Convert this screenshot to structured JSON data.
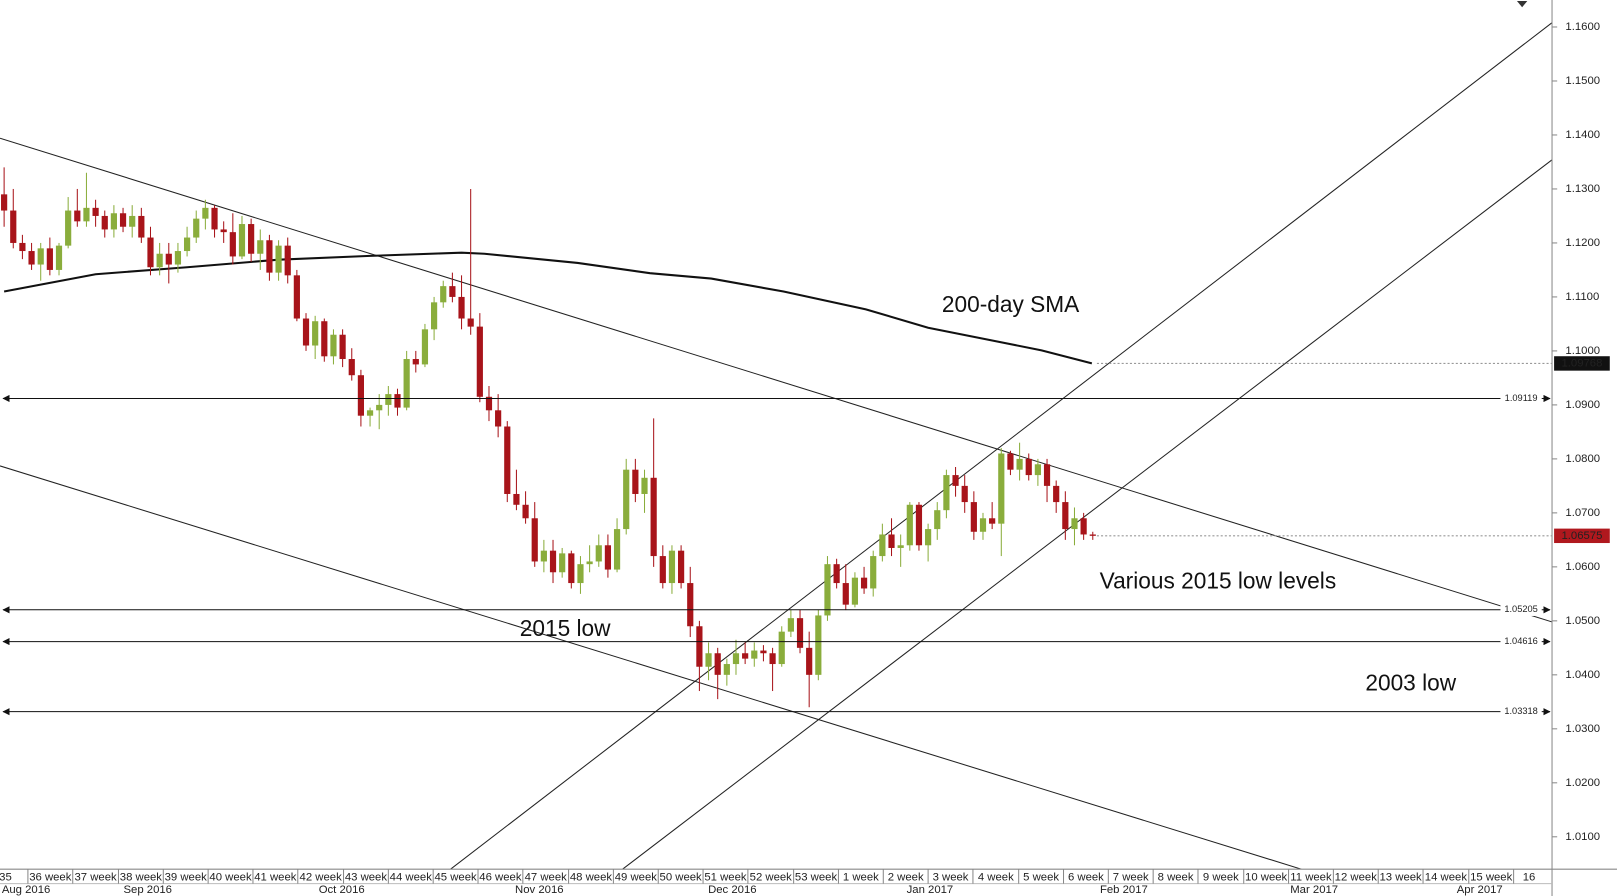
{
  "chart_data": {
    "type": "candlestick",
    "up_color": "#8aad3c",
    "down_color": "#a8141a",
    "xlim": [
      -0.45,
      169.2
    ],
    "ylim": [
      1.004,
      1.165
    ],
    "grid": false,
    "open": [
      1.129,
      1.126,
      1.12,
      1.1185,
      1.116,
      1.119,
      1.115,
      1.1195,
      1.126,
      1.124,
      1.1265,
      1.125,
      1.1225,
      1.1255,
      1.123,
      1.125,
      1.121,
      1.1155,
      1.118,
      1.116,
      1.1185,
      1.121,
      1.1245,
      1.1265,
      1.1225,
      1.122,
      1.1175,
      1.1235,
      1.118,
      1.1205,
      1.1145,
      1.1195,
      1.114,
      1.106,
      1.101,
      1.1055,
      1.099,
      1.103,
      1.0985,
      1.0955,
      1.088,
      1.089,
      1.09,
      1.092,
      1.0895,
      1.0985,
      1.0975,
      1.104,
      1.109,
      1.112,
      1.11,
      1.106,
      1.1045,
      1.0915,
      1.089,
      1.086,
      1.0735,
      1.0715,
      1.069,
      1.061,
      1.063,
      1.059,
      1.0625,
      1.057,
      1.0605,
      1.061,
      1.064,
      1.0595,
      1.067,
      1.078,
      1.0735,
      1.0765,
      1.062,
      1.057,
      1.063,
      1.057,
      1.049,
      1.0415,
      1.044,
      1.04,
      1.042,
      1.044,
      1.043,
      1.0445,
      1.044,
      1.042,
      1.048,
      1.0505,
      1.045,
      1.04,
      1.051,
      1.0605,
      1.057,
      1.053,
      1.058,
      1.056,
      1.062,
      1.066,
      1.0635,
      1.064,
      1.0715,
      1.064,
      1.067,
      1.0705,
      1.077,
      1.075,
      1.072,
      1.0665,
      1.069,
      1.068,
      1.081,
      1.078,
      1.08,
      1.077,
      1.079,
      1.075,
      1.072,
      1.067,
      1.069,
      1.066
    ],
    "high": [
      1.134,
      1.13,
      1.1215,
      1.12,
      1.12,
      1.121,
      1.12,
      1.1285,
      1.13,
      1.133,
      1.128,
      1.126,
      1.127,
      1.1265,
      1.127,
      1.1265,
      1.123,
      1.12,
      1.12,
      1.12,
      1.123,
      1.126,
      1.128,
      1.127,
      1.124,
      1.1255,
      1.125,
      1.1245,
      1.1225,
      1.1215,
      1.1205,
      1.121,
      1.115,
      1.107,
      1.1065,
      1.106,
      1.104,
      1.104,
      1.1005,
      1.0965,
      1.0895,
      1.092,
      1.0935,
      1.093,
      1.1,
      1.1,
      1.105,
      1.11,
      1.113,
      1.1145,
      1.114,
      1.13,
      1.107,
      1.0935,
      1.092,
      1.087,
      1.078,
      1.074,
      1.072,
      1.065,
      1.065,
      1.0635,
      1.063,
      1.062,
      1.064,
      1.066,
      1.066,
      1.069,
      1.08,
      1.08,
      1.078,
      1.0875,
      1.064,
      1.064,
      1.064,
      1.06,
      1.05,
      1.046,
      1.045,
      1.043,
      1.0465,
      1.046,
      1.046,
      1.0455,
      1.045,
      1.049,
      1.052,
      1.052,
      1.048,
      1.052,
      1.062,
      1.0615,
      1.0605,
      1.059,
      1.06,
      1.063,
      1.068,
      1.069,
      1.066,
      1.072,
      1.072,
      1.068,
      1.072,
      1.078,
      1.0785,
      1.077,
      1.074,
      1.07,
      1.072,
      1.082,
      1.0815,
      1.083,
      1.081,
      1.08,
      1.08,
      1.076,
      1.074,
      1.071,
      1.07,
      1.0665
    ],
    "low": [
      1.123,
      1.119,
      1.117,
      1.115,
      1.113,
      1.114,
      1.114,
      1.119,
      1.123,
      1.123,
      1.123,
      1.121,
      1.121,
      1.122,
      1.121,
      1.12,
      1.114,
      1.114,
      1.1125,
      1.1145,
      1.1175,
      1.12,
      1.1225,
      1.121,
      1.12,
      1.116,
      1.117,
      1.1165,
      1.115,
      1.113,
      1.113,
      1.1125,
      1.1055,
      1.1,
      1.0985,
      1.098,
      1.0975,
      1.097,
      1.0945,
      1.086,
      1.086,
      1.0855,
      1.088,
      1.088,
      1.089,
      1.096,
      1.097,
      1.102,
      1.108,
      1.109,
      1.104,
      1.103,
      1.0905,
      1.087,
      1.084,
      1.072,
      1.0705,
      1.068,
      1.06,
      1.059,
      1.057,
      1.058,
      1.056,
      1.055,
      1.059,
      1.06,
      1.058,
      1.059,
      1.066,
      1.072,
      1.07,
      1.06,
      1.056,
      1.055,
      1.056,
      1.047,
      1.037,
      1.039,
      1.0355,
      1.038,
      1.04,
      1.042,
      1.0415,
      1.0425,
      1.037,
      1.0415,
      1.047,
      1.044,
      1.034,
      1.039,
      1.05,
      1.056,
      1.052,
      1.0525,
      1.055,
      1.0545,
      1.061,
      1.062,
      1.06,
      1.063,
      1.063,
      1.061,
      1.065,
      1.069,
      1.073,
      1.07,
      1.065,
      1.065,
      1.067,
      1.062,
      1.077,
      1.076,
      1.076,
      1.075,
      1.072,
      1.07,
      1.065,
      1.064,
      1.065,
      1.065
    ],
    "close": [
      1.126,
      1.12,
      1.1185,
      1.116,
      1.119,
      1.115,
      1.1195,
      1.126,
      1.124,
      1.1265,
      1.125,
      1.1225,
      1.1255,
      1.123,
      1.125,
      1.121,
      1.1155,
      1.118,
      1.116,
      1.1185,
      1.121,
      1.1245,
      1.1265,
      1.1225,
      1.122,
      1.1175,
      1.1235,
      1.118,
      1.1205,
      1.1145,
      1.1195,
      1.114,
      1.106,
      1.101,
      1.1055,
      1.099,
      1.103,
      1.0985,
      1.0955,
      1.088,
      1.089,
      1.09,
      1.092,
      1.0895,
      1.0985,
      1.0975,
      1.104,
      1.109,
      1.112,
      1.11,
      1.106,
      1.1045,
      1.0915,
      1.089,
      1.086,
      1.0735,
      1.0715,
      1.069,
      1.061,
      1.063,
      1.059,
      1.0625,
      1.057,
      1.0605,
      1.061,
      1.064,
      1.0595,
      1.067,
      1.078,
      1.0735,
      1.0765,
      1.062,
      1.057,
      1.063,
      1.057,
      1.049,
      1.0415,
      1.044,
      1.04,
      1.042,
      1.044,
      1.043,
      1.0445,
      1.044,
      1.042,
      1.048,
      1.0505,
      1.045,
      1.04,
      1.051,
      1.0605,
      1.057,
      1.053,
      1.058,
      1.056,
      1.062,
      1.066,
      1.0635,
      1.064,
      1.0715,
      1.064,
      1.067,
      1.0705,
      1.077,
      1.075,
      1.072,
      1.0665,
      1.069,
      1.068,
      1.081,
      1.078,
      1.08,
      1.077,
      1.079,
      1.075,
      1.072,
      1.067,
      1.069,
      1.066,
      1.06575
    ],
    "sma": {
      "color": "#111111",
      "x": [
        0,
        10,
        20,
        30,
        40,
        50,
        52.5,
        62.7,
        70.6,
        77.3,
        85.2,
        94.2,
        101,
        107.8,
        113.4,
        118.9
      ],
      "values": [
        1.111,
        1.1142,
        1.1155,
        1.1169,
        1.1176,
        1.1182,
        1.118,
        1.1163,
        1.1144,
        1.1134,
        1.111,
        1.1077,
        1.1043,
        1.102,
        1.1001,
        1.0977
      ]
    },
    "trendlines": [
      {
        "x": [
          -0.45,
          169.2
        ],
        "values": [
          1.1394,
          1.0498
        ]
      },
      {
        "x": [
          -0.45,
          141.8
        ],
        "values": [
          1.0787,
          1.004
        ]
      },
      {
        "x": [
          48.8,
          169.2
        ],
        "values": [
          1.004,
          1.1608
        ]
      },
      {
        "x": [
          67.6,
          169.2
        ],
        "values": [
          1.004,
          1.1354
        ]
      }
    ],
    "levels": [
      1.09119,
      1.05205,
      1.04616,
      1.03318
    ],
    "price_tags": [
      {
        "value": 1.09768,
        "color": "#111111"
      },
      {
        "value": 1.06575,
        "color": "#b0181e"
      }
    ],
    "annotations": [
      "200-day SMA",
      "Various 2015 low levels",
      "2015 low",
      "2003 low"
    ],
    "yticks": [
      {
        "value": 1.01,
        "label": "1.0100"
      },
      {
        "value": 1.02,
        "label": "1.0200"
      },
      {
        "value": 1.03,
        "label": "1.0300"
      },
      {
        "value": 1.04,
        "label": "1.0400"
      },
      {
        "value": 1.05,
        "label": "1.0500"
      },
      {
        "value": 1.06,
        "label": "1.0600"
      },
      {
        "value": 1.07,
        "label": "1.0700"
      },
      {
        "value": 1.08,
        "label": "1.0800"
      },
      {
        "value": 1.09,
        "label": "1.0900"
      },
      {
        "value": 1.1,
        "label": "1.1000"
      },
      {
        "value": 1.11,
        "label": "1.1100"
      },
      {
        "value": 1.12,
        "label": "1.1200"
      },
      {
        "value": 1.13,
        "label": "1.1300"
      },
      {
        "value": 1.14,
        "label": "1.1400"
      },
      {
        "value": 1.15,
        "label": "1.1500"
      },
      {
        "value": 1.16,
        "label": "1.1600"
      }
    ],
    "week_ticks": [
      {
        "value": -2.3,
        "label": "35"
      },
      {
        "value": 2.6,
        "label": "36 week"
      },
      {
        "value": 7.5,
        "label": "37 week"
      },
      {
        "value": 12.5,
        "label": "38 week"
      },
      {
        "value": 17.4,
        "label": "39 week"
      },
      {
        "value": 22.3,
        "label": "40 week"
      },
      {
        "value": 27.2,
        "label": "41 week"
      },
      {
        "value": 32.1,
        "label": "42 week"
      },
      {
        "value": 37.1,
        "label": "43 week"
      },
      {
        "value": 42.0,
        "label": "44 week"
      },
      {
        "value": 46.9,
        "label": "45 week"
      },
      {
        "value": 51.8,
        "label": "46 week"
      },
      {
        "value": 56.7,
        "label": "47 week"
      },
      {
        "value": 61.7,
        "label": "48 week"
      },
      {
        "value": 66.6,
        "label": "49 week"
      },
      {
        "value": 71.5,
        "label": "50 week"
      },
      {
        "value": 76.4,
        "label": "51 week"
      },
      {
        "value": 81.3,
        "label": "52 week"
      },
      {
        "value": 86.3,
        "label": "53 week"
      },
      {
        "value": 91.2,
        "label": "1 week"
      },
      {
        "value": 96.1,
        "label": "2 week"
      },
      {
        "value": 101.0,
        "label": "3 week"
      },
      {
        "value": 105.9,
        "label": "4 week"
      },
      {
        "value": 110.9,
        "label": "5 week"
      },
      {
        "value": 115.8,
        "label": "6 week"
      },
      {
        "value": 120.7,
        "label": "7 week"
      },
      {
        "value": 125.6,
        "label": "8 week"
      },
      {
        "value": 130.5,
        "label": "9 week"
      },
      {
        "value": 135.5,
        "label": "10 week"
      },
      {
        "value": 140.4,
        "label": "11 week"
      },
      {
        "value": 145.3,
        "label": "12 week"
      },
      {
        "value": 150.2,
        "label": "13 week"
      },
      {
        "value": 155.1,
        "label": "14 week"
      },
      {
        "value": 160.1,
        "label": "15 week"
      },
      {
        "value": 165.0,
        "label": "16"
      }
    ],
    "month_ticks": [
      {
        "value": 2.4,
        "label": "Aug 2016"
      },
      {
        "value": 15.7,
        "label": "Sep 2016"
      },
      {
        "value": 36.9,
        "label": "Oct 2016"
      },
      {
        "value": 58.5,
        "label": "Nov 2016"
      },
      {
        "value": 79.6,
        "label": "Dec 2016"
      },
      {
        "value": 101.2,
        "label": "Jan 2017"
      },
      {
        "value": 122.4,
        "label": "Feb 2017"
      },
      {
        "value": 143.2,
        "label": "Mar 2017"
      },
      {
        "value": 161.3,
        "label": "Apr 2017"
      }
    ]
  }
}
